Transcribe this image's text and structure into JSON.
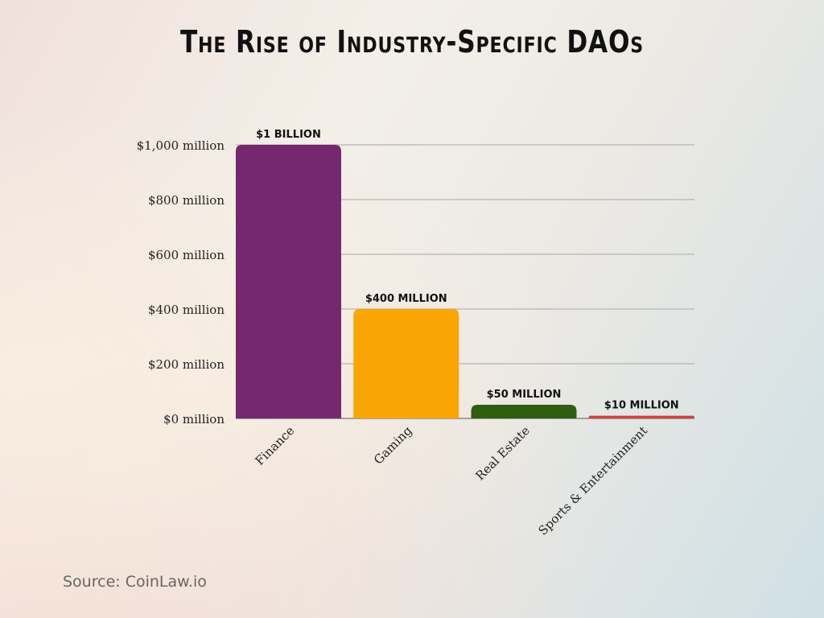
{
  "chart_data": {
    "type": "bar",
    "title": "The Rise of Industry-Specific DAOs",
    "categories": [
      "Finance",
      "Gaming",
      "Real Estate",
      "Sports & Entertainment"
    ],
    "values": [
      1000,
      400,
      50,
      10
    ],
    "data_labels": [
      "$1 BILLION",
      "$400 MILLION",
      "$50 MILLION",
      "$10 MILLION"
    ],
    "colors": [
      "#74286e",
      "#f9a503",
      "#2f5e10",
      "#d0433a"
    ],
    "unit": "million USD",
    "ylim": [
      0,
      1000
    ],
    "yticks": [
      0,
      200,
      400,
      600,
      800,
      1000
    ],
    "ytick_labels": [
      "$0 million",
      "$200 million",
      "$400 million",
      "$600 million",
      "$800 million",
      "$1,000 million"
    ],
    "grid": true,
    "legend": "none",
    "xlabel": "",
    "ylabel": ""
  },
  "source": "Source: CoinLaw.io"
}
